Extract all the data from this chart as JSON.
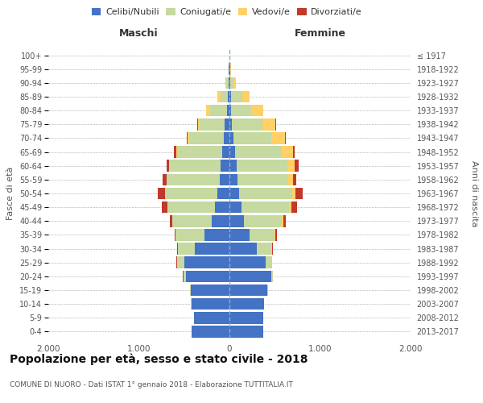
{
  "age_groups": [
    "0-4",
    "5-9",
    "10-14",
    "15-19",
    "20-24",
    "25-29",
    "30-34",
    "35-39",
    "40-44",
    "45-49",
    "50-54",
    "55-59",
    "60-64",
    "65-69",
    "70-74",
    "75-79",
    "80-84",
    "85-89",
    "90-94",
    "95-99",
    "100+"
  ],
  "birth_years": [
    "2013-2017",
    "2008-2012",
    "2003-2007",
    "1998-2002",
    "1993-1997",
    "1988-1992",
    "1983-1987",
    "1978-1982",
    "1973-1977",
    "1968-1972",
    "1963-1967",
    "1958-1962",
    "1953-1957",
    "1948-1952",
    "1943-1947",
    "1938-1942",
    "1933-1937",
    "1928-1932",
    "1923-1927",
    "1918-1922",
    "≤ 1917"
  ],
  "male": {
    "celibe": [
      420,
      390,
      420,
      430,
      480,
      500,
      380,
      280,
      200,
      160,
      130,
      110,
      100,
      80,
      60,
      50,
      30,
      20,
      10,
      5,
      2
    ],
    "coniugato": [
      1,
      2,
      5,
      10,
      30,
      80,
      190,
      310,
      430,
      520,
      580,
      580,
      560,
      500,
      380,
      280,
      180,
      80,
      25,
      5,
      0
    ],
    "vedovo": [
      0,
      0,
      0,
      0,
      1,
      2,
      2,
      2,
      2,
      5,
      5,
      5,
      5,
      10,
      25,
      20,
      50,
      30,
      10,
      2,
      0
    ],
    "divorziato": [
      0,
      0,
      0,
      0,
      1,
      2,
      5,
      10,
      30,
      60,
      80,
      40,
      30,
      20,
      10,
      2,
      2,
      2,
      0,
      0,
      0
    ]
  },
  "female": {
    "nubile": [
      370,
      370,
      380,
      420,
      460,
      400,
      300,
      220,
      160,
      130,
      110,
      90,
      80,
      60,
      40,
      30,
      20,
      20,
      10,
      5,
      2
    ],
    "coniugata": [
      1,
      2,
      3,
      10,
      20,
      70,
      170,
      280,
      420,
      530,
      580,
      560,
      560,
      520,
      420,
      330,
      220,
      120,
      30,
      5,
      0
    ],
    "vedova": [
      0,
      0,
      0,
      0,
      1,
      2,
      5,
      10,
      15,
      25,
      40,
      50,
      80,
      120,
      150,
      150,
      130,
      80,
      30,
      5,
      0
    ],
    "divorziata": [
      0,
      0,
      0,
      0,
      1,
      3,
      5,
      15,
      30,
      60,
      80,
      40,
      40,
      20,
      10,
      5,
      5,
      2,
      0,
      0,
      0
    ]
  },
  "colors": {
    "celibe": "#4472C4",
    "coniugato": "#C5D9A0",
    "vedovo": "#FFD066",
    "divorziato": "#C0392B"
  },
  "xlim": 2000,
  "title": "Popolazione per età, sesso e stato civile - 2018",
  "subtitle": "COMUNE DI NUORO - Dati ISTAT 1° gennaio 2018 - Elaborazione TUTTITALIA.IT",
  "xlabel_left": "Maschi",
  "xlabel_right": "Femmine",
  "ylabel_left": "Fasce di età",
  "ylabel_right": "Anni di nascita",
  "legend_labels": [
    "Celibi/Nubili",
    "Coniugati/e",
    "Vedovi/e",
    "Divorziati/e"
  ],
  "bg_color": "#FFFFFF",
  "grid_color": "#BBBBBB"
}
